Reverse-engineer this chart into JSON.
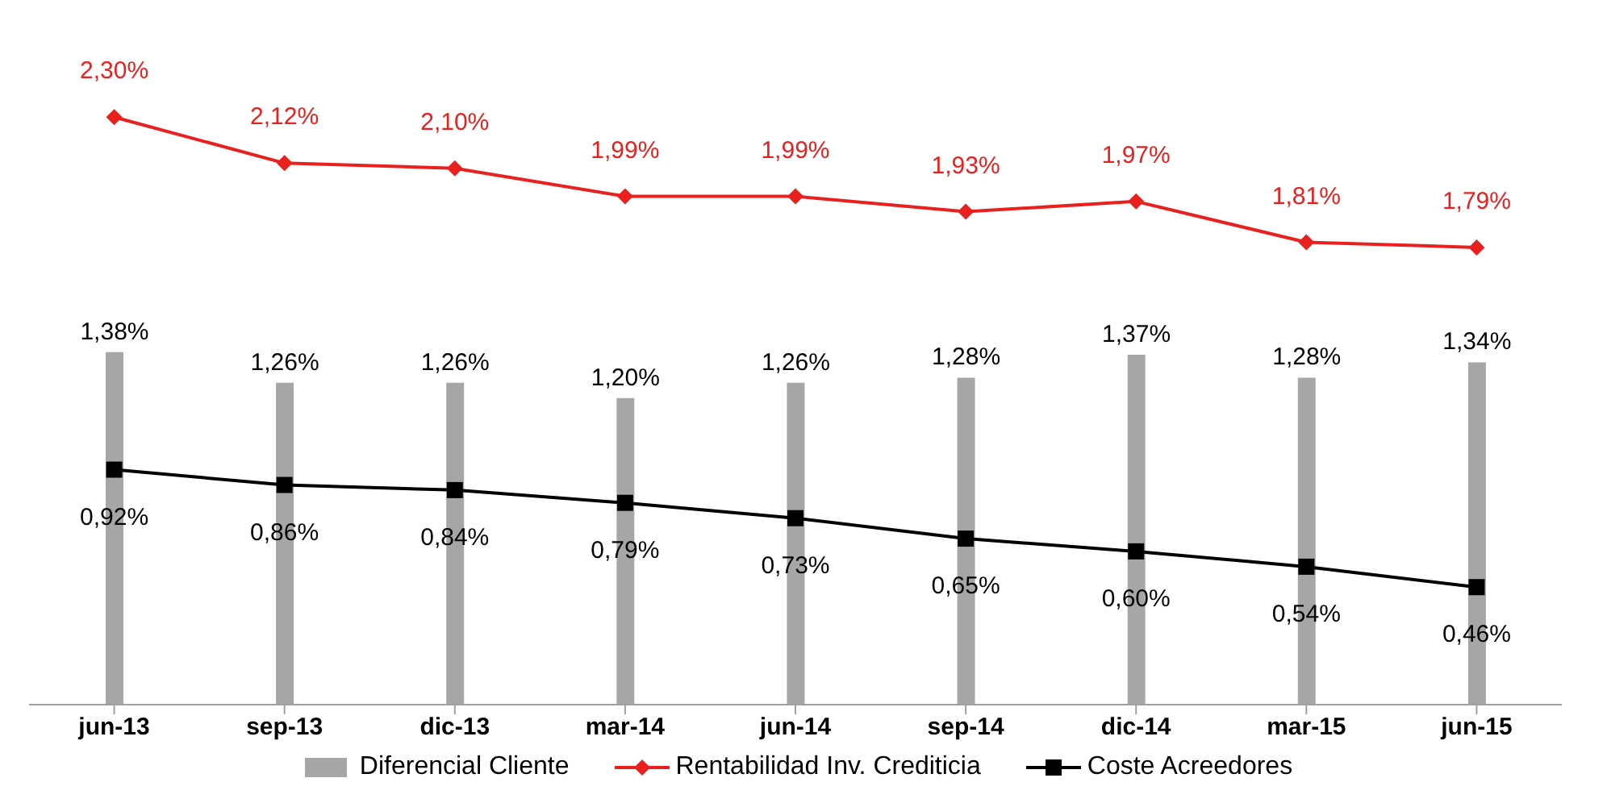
{
  "chart_data": {
    "type": "bar",
    "categories": [
      "jun-13",
      "sep-13",
      "dic-13",
      "mar-14",
      "jun-14",
      "sep-14",
      "dic-14",
      "mar-15",
      "jun-15"
    ],
    "series": [
      {
        "name": "Diferencial Cliente",
        "color": "#a6a6a6",
        "values": [
          1.38,
          1.26,
          1.26,
          1.2,
          1.26,
          1.28,
          1.37,
          1.28,
          1.34
        ],
        "value_labels": [
          "1,38%",
          "1,26%",
          "1,26%",
          "1,20%",
          "1,26%",
          "1,28%",
          "1,37%",
          "1,28%",
          "1,34%"
        ]
      },
      {
        "name": "Rentabilidad Inv. Crediticia",
        "type": "line",
        "color": "#e8201e",
        "marker": "diamond",
        "values": [
          2.3,
          2.12,
          2.1,
          1.99,
          1.99,
          1.93,
          1.97,
          1.81,
          1.79
        ],
        "value_labels": [
          "2,30%",
          "2,12%",
          "2,10%",
          "1,99%",
          "1,99%",
          "1,93%",
          "1,97%",
          "1,81%",
          "1,79%"
        ]
      },
      {
        "name": "Coste Acreedores",
        "type": "line",
        "color": "#000000",
        "marker": "square",
        "values": [
          0.92,
          0.86,
          0.84,
          0.79,
          0.73,
          0.65,
          0.6,
          0.54,
          0.46
        ],
        "value_labels": [
          "0,92%",
          "0,86%",
          "0,84%",
          "0,79%",
          "0,73%",
          "0,65%",
          "0,60%",
          "0,54%",
          "0,46%"
        ]
      }
    ],
    "tick_labels": "x",
    "grid": false,
    "legend": "bottom"
  }
}
